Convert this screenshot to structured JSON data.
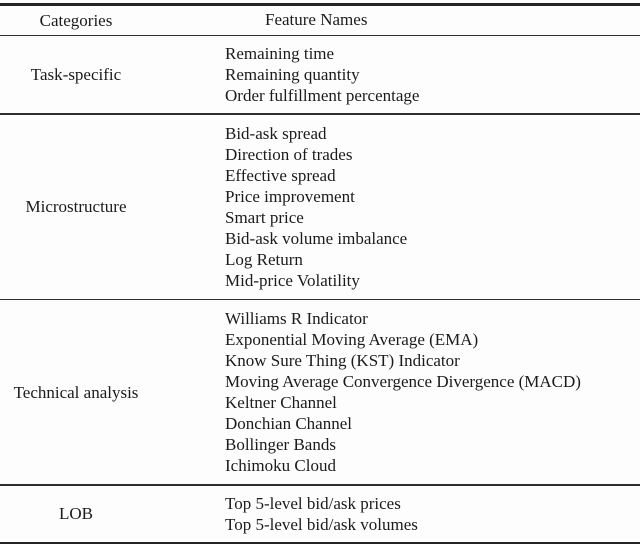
{
  "table": {
    "headers": {
      "categories": "Categories",
      "features": "Feature Names"
    },
    "sections": [
      {
        "category": "Task-specific",
        "features": [
          "Remaining time",
          "Remaining quantity",
          "Order fulfillment percentage"
        ]
      },
      {
        "category": "Microstructure",
        "features": [
          "Bid-ask spread",
          "Direction of trades",
          "Effective spread",
          "Price improvement",
          "Smart price",
          "Bid-ask volume imbalance",
          "Log Return",
          "Mid-price Volatility"
        ]
      },
      {
        "category": "Technical analysis",
        "features": [
          "Williams R Indicator",
          "Exponential Moving Average (EMA)",
          "Know Sure Thing (KST) Indicator",
          "Moving Average Convergence Divergence (MACD)",
          "Keltner Channel",
          "Donchian Channel",
          "Bollinger Bands",
          "Ichimoku Cloud"
        ]
      },
      {
        "category": "LOB",
        "features": [
          "Top 5-level bid/ask prices",
          "Top 5-level bid/ask volumes"
        ]
      }
    ],
    "colors": {
      "text": "#1b1b1b",
      "rule": "#242424",
      "background": "#fdfdfd"
    }
  }
}
